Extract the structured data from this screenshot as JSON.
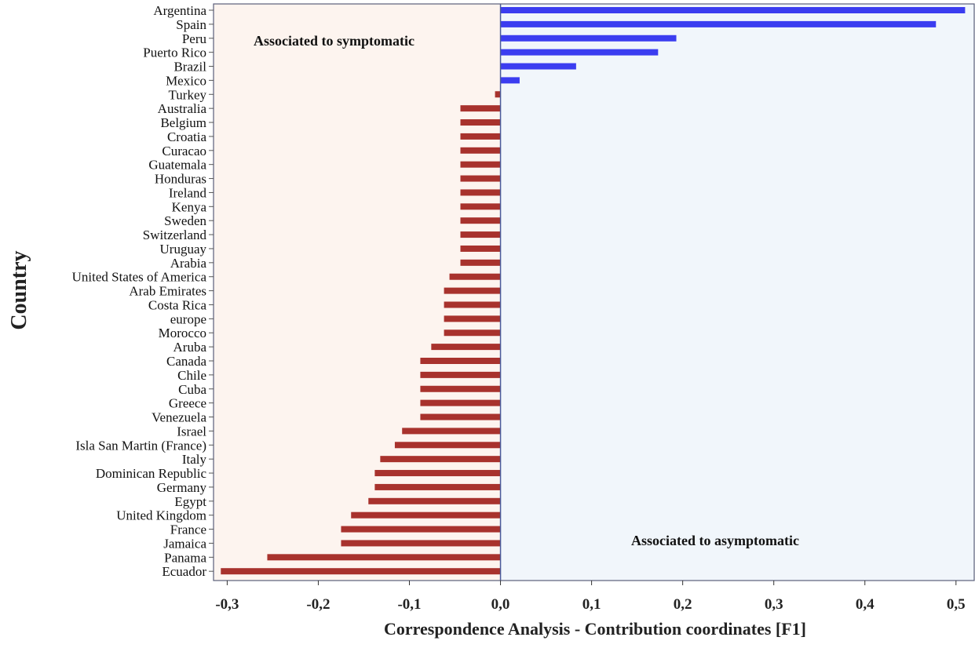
{
  "chart_data": {
    "type": "bar",
    "orientation": "horizontal",
    "title": "",
    "xlabel": "Correspondence Analysis - Contribution coordinates [F1]",
    "ylabel": "Country",
    "xlim": [
      -0.315,
      0.52
    ],
    "xticks": [
      -0.3,
      -0.2,
      -0.1,
      0.0,
      0.1,
      0.2,
      0.3,
      0.4,
      0.5
    ],
    "xtick_labels": [
      "-0,3",
      "-0,2",
      "-0,1",
      "0,0",
      "0,1",
      "0,2",
      "0,3",
      "0,4",
      "0,5"
    ],
    "annotations": {
      "negative_region": "Associated to symptomatic",
      "positive_region": "Associated to asymptomatic"
    },
    "colors": {
      "positive_bar": "#3b3df0",
      "negative_bar": "#a8322d",
      "negative_region_bg": "#fdf4ef",
      "positive_region_bg": "#f1f6fb",
      "zero_line": "#4a5a9a"
    },
    "grid": false,
    "legend": "none",
    "categories": [
      "Argentina",
      "Spain",
      "Peru",
      "Puerto Rico",
      "Brazil",
      "Mexico",
      "Turkey",
      "Australia",
      "Belgium",
      "Croatia",
      "Curacao",
      "Guatemala",
      "Honduras",
      "Ireland",
      "Kenya",
      "Sweden",
      "Switzerland",
      "Uruguay",
      "Arabia",
      "United States of America",
      "Arab Emirates",
      "Costa Rica",
      "europe",
      "Morocco",
      "Aruba",
      "Canada",
      "Chile",
      "Cuba",
      "Greece",
      "Venezuela",
      "Israel",
      "Isla San Martin (France)",
      "Italy",
      "Dominican Republic",
      "Germany",
      "Egypt",
      "United Kingdom",
      "France",
      "Jamaica",
      "Panama",
      "Ecuador"
    ],
    "values": [
      0.51,
      0.478,
      0.193,
      0.173,
      0.083,
      0.021,
      -0.006,
      -0.044,
      -0.044,
      -0.044,
      -0.044,
      -0.044,
      -0.044,
      -0.044,
      -0.044,
      -0.044,
      -0.044,
      -0.044,
      -0.044,
      -0.056,
      -0.062,
      -0.062,
      -0.062,
      -0.062,
      -0.076,
      -0.088,
      -0.088,
      -0.088,
      -0.088,
      -0.088,
      -0.108,
      -0.116,
      -0.132,
      -0.138,
      -0.138,
      -0.145,
      -0.164,
      -0.175,
      -0.175,
      -0.256,
      -0.307
    ]
  }
}
